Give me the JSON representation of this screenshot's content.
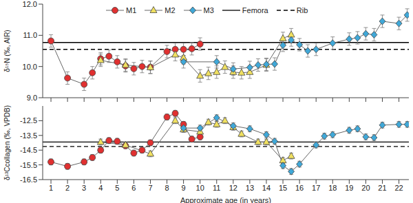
{
  "chart_data": [
    {
      "type": "line",
      "y_label": "δ¹⁵N (‰, AIR)",
      "legend": "top",
      "tick_labels": "y",
      "xlim": [
        0.5,
        22.6
      ],
      "xticks": [
        1,
        2,
        3,
        4,
        5,
        6,
        7,
        8,
        9,
        10,
        11,
        12,
        13,
        14,
        15,
        16,
        17,
        18,
        19,
        20,
        21,
        22
      ],
      "ylim": [
        9,
        12
      ],
      "yticks": [
        {
          "value": 9,
          "label": "9.0"
        },
        {
          "value": 10,
          "label": "10.0"
        },
        {
          "value": 11,
          "label": "11.0"
        },
        {
          "value": 12,
          "label": "12.0"
        }
      ],
      "series": [
        {
          "name": "M1",
          "color": "#e03030",
          "marker": "circle",
          "error": 0.2,
          "x": [
            1,
            2,
            3,
            3.5,
            4,
            4.5,
            5,
            5.5,
            6,
            6.5,
            7,
            8,
            8.5,
            9,
            9.5,
            10
          ],
          "values": [
            10.82,
            9.63,
            9.43,
            9.8,
            10.25,
            10.33,
            10.15,
            10.02,
            9.93,
            10.0,
            9.98,
            10.48,
            10.55,
            10.55,
            10.57,
            10.72
          ]
        },
        {
          "name": "M2",
          "color": "#f0e060",
          "marker": "triangle",
          "error": 0.2,
          "x": [
            4,
            5.5,
            7,
            8.5,
            9,
            10,
            10.5,
            11,
            11.5,
            12,
            12.5,
            13,
            14,
            15,
            15.5
          ],
          "values": [
            10.2,
            10.05,
            9.97,
            10.38,
            10.28,
            9.7,
            9.78,
            9.82,
            9.98,
            9.82,
            9.8,
            9.82,
            10.05,
            10.9,
            11.02
          ]
        },
        {
          "name": "M3",
          "color": "#40a8d8",
          "marker": "diamond",
          "error": 0.2,
          "x": [
            9,
            11,
            12,
            13,
            13.5,
            14,
            14.5,
            15,
            15.5,
            16,
            16.5,
            17,
            18,
            19,
            19.5,
            20,
            20.5,
            21,
            22,
            22.5
          ],
          "values": [
            10.15,
            10.15,
            9.92,
            9.97,
            10.05,
            10.07,
            10.08,
            10.68,
            10.85,
            10.7,
            10.5,
            10.55,
            10.75,
            10.88,
            10.92,
            11.05,
            11.02,
            11.45,
            11.38,
            11.65
          ]
        }
      ],
      "reference_lines": [
        {
          "name": "Femora",
          "value": 10.77,
          "color": "#000000",
          "line_style": "solid"
        },
        {
          "name": "Rib",
          "value": 10.55,
          "color": "#000000",
          "line_style": "dashed"
        }
      ]
    },
    {
      "type": "line",
      "y_label": "δ¹³Ccollagen (‰, VPDB)",
      "x_label": "Approximate age (in years)",
      "xlim": [
        0.5,
        22.6
      ],
      "xticks": [
        1,
        2,
        3,
        4,
        5,
        6,
        7,
        8,
        9,
        10,
        11,
        12,
        13,
        14,
        15,
        16,
        17,
        18,
        19,
        20,
        21,
        22
      ],
      "ylim": [
        -16.5,
        -11.5
      ],
      "yticks": [
        -16.5,
        -15.5,
        -14.5,
        -13.5,
        -12.5
      ],
      "series": [
        {
          "name": "M1",
          "color": "#e03030",
          "marker": "circle",
          "error": 0.2,
          "x": [
            1,
            2,
            3,
            3.5,
            4,
            4.5,
            5,
            5.5,
            6,
            6.5,
            7,
            8,
            8.5,
            9,
            9.5,
            10
          ],
          "values": [
            -15.3,
            -15.6,
            -15.3,
            -15.0,
            -14.5,
            -13.85,
            -13.9,
            -14.2,
            -14.7,
            -14.5,
            -14.0,
            -12.25,
            -12.0,
            -12.75,
            -13.75,
            -13.6
          ]
        },
        {
          "name": "M2",
          "color": "#f0e060",
          "marker": "triangle",
          "error": 0.2,
          "x": [
            4,
            5.5,
            7,
            8.5,
            9,
            10,
            10.5,
            11,
            11.5,
            12,
            12.5,
            13.5,
            14,
            15,
            15.5
          ],
          "values": [
            -13.95,
            -14.15,
            -14.75,
            -12.5,
            -13.1,
            -13.25,
            -12.6,
            -12.75,
            -12.5,
            -12.95,
            -13.4,
            -13.95,
            -13.95,
            -15.2,
            -14.9
          ]
        },
        {
          "name": "M3",
          "color": "#40a8d8",
          "marker": "diamond",
          "error": 0.2,
          "x": [
            9,
            10,
            11,
            12,
            13,
            14,
            14.5,
            15,
            15.5,
            16,
            17,
            17.5,
            18,
            19,
            19.5,
            20,
            20.5,
            21,
            22,
            22.5
          ],
          "values": [
            -13.0,
            -13.0,
            -12.3,
            -12.85,
            -13.05,
            -13.45,
            -13.9,
            -15.55,
            -15.95,
            -15.45,
            -14.15,
            -13.55,
            -13.45,
            -13.15,
            -13.05,
            -13.6,
            -13.65,
            -12.8,
            -12.75,
            -12.75
          ]
        }
      ],
      "reference_lines": [
        {
          "name": "Femora",
          "value": -13.95,
          "color": "#000000",
          "line_style": "solid"
        },
        {
          "name": "Rib",
          "value": -14.25,
          "color": "#000000",
          "line_style": "dashed"
        }
      ]
    }
  ]
}
